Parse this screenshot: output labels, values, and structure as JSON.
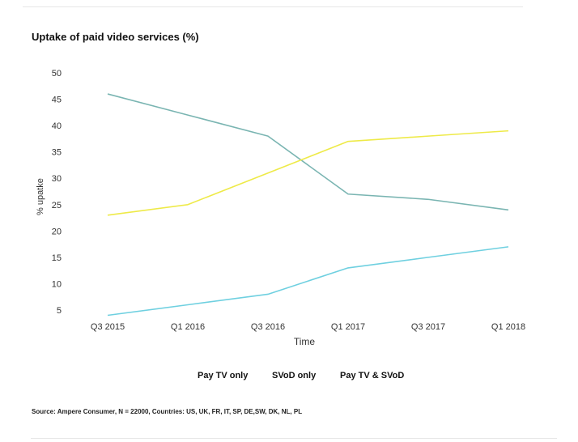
{
  "chart_data": {
    "type": "line",
    "title": "Uptake of paid video services (%)",
    "xlabel": "Time",
    "ylabel": "% upatke",
    "categories": [
      "Q3 2015",
      "Q1 2016",
      "Q3 2016",
      "Q1 2017",
      "Q3 2017",
      "Q1 2018"
    ],
    "yticks": [
      5,
      10,
      15,
      20,
      25,
      30,
      35,
      40,
      45,
      50
    ],
    "ylim": [
      3,
      50
    ],
    "grid": false,
    "legend_position": "bottom",
    "series": [
      {
        "name": "Pay TV only",
        "color": "#7ab5b2",
        "values": [
          46,
          42,
          38,
          27,
          26,
          24
        ]
      },
      {
        "name": "SVoD only",
        "color": "#6fd0e0",
        "values": [
          4,
          6,
          8,
          13,
          15,
          17
        ]
      },
      {
        "name": "Pay TV & SVoD",
        "color": "#eeea48",
        "values": [
          23,
          25,
          31,
          37,
          38,
          39
        ]
      }
    ]
  },
  "source": "Source: Ampere Consumer, N = 22000, Countries: US, UK, FR, IT, SP, DE,SW, DK, NL, PL"
}
